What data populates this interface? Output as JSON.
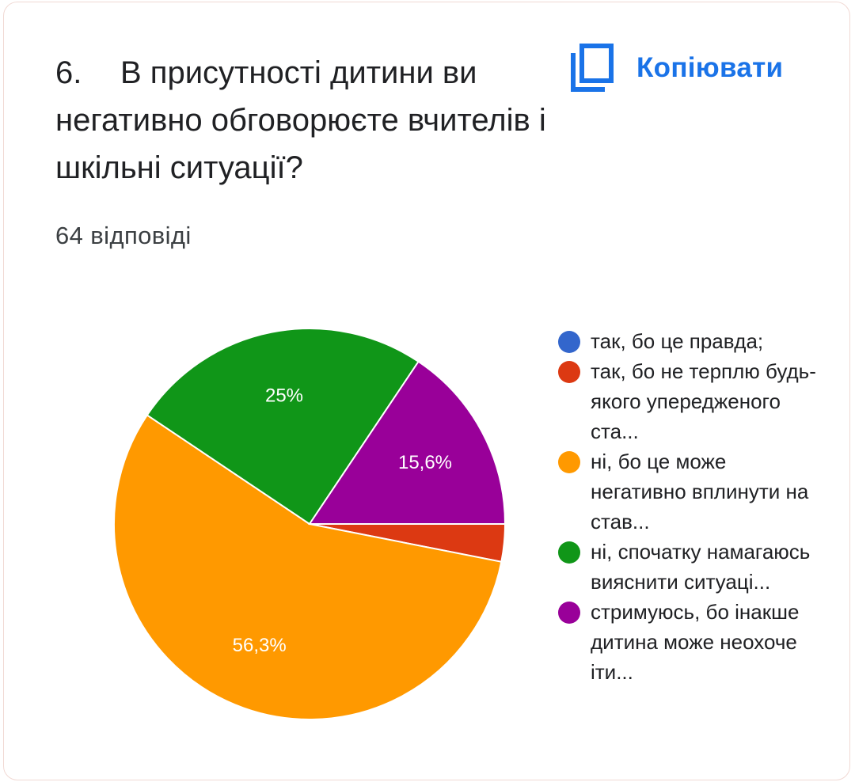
{
  "question": {
    "number": "6.",
    "text": "В присутності дитини ви негативно обговорюєте вчителів і шкільні ситуації?",
    "responses": "64 відповіді"
  },
  "copy_button": {
    "label": "Копіювати",
    "icon": "copy-icon"
  },
  "colors": {
    "accent": "#1a73e8",
    "blue": "#3366cc",
    "red": "#dc3912",
    "orange": "#ff9900",
    "green": "#109618",
    "purple": "#990099"
  },
  "chart_data": {
    "type": "pie",
    "total_responses": 64,
    "slices": [
      {
        "label": "так, бо це правда;",
        "value": 0,
        "percent_label": "",
        "color": "#3366cc"
      },
      {
        "label": "так, бо не терплю будь-якого упередженого ста...",
        "value": 3.1,
        "percent_label": "",
        "color": "#dc3912"
      },
      {
        "label": "ні, бо це може негативно вплинути на став...",
        "value": 56.3,
        "percent_label": "56,3%",
        "color": "#ff9900"
      },
      {
        "label": "ні, спочатку намагаюсь вияснити ситуаці...",
        "value": 25,
        "percent_label": "25%",
        "color": "#109618"
      },
      {
        "label": "стримуюсь, бо інакше дитина може неохоче іти...",
        "value": 15.6,
        "percent_label": "15,6%",
        "color": "#990099"
      }
    ],
    "legend_position": "right"
  }
}
